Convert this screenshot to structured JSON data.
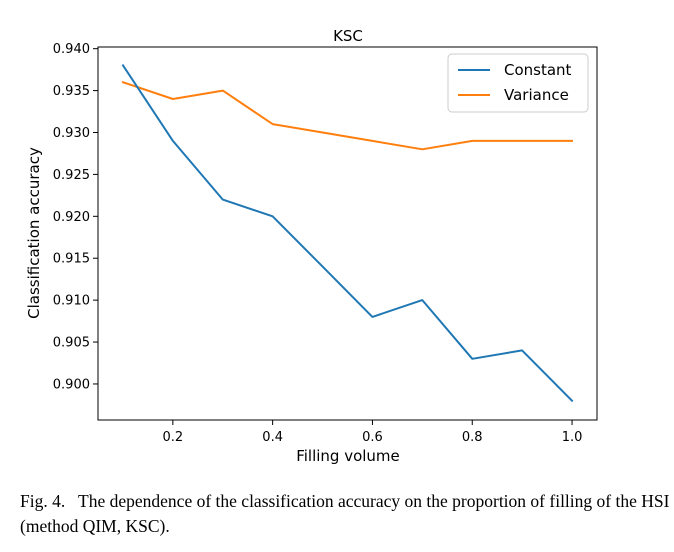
{
  "chart_data": {
    "type": "line",
    "title": "KSC",
    "xlabel": "Filling volume",
    "ylabel": "Classification accuracy",
    "xlim": [
      0.05,
      1.05
    ],
    "ylim": [
      0.8957,
      0.9402
    ],
    "x": [
      0.1,
      0.2,
      0.3,
      0.4,
      0.5,
      0.6,
      0.7,
      0.8,
      0.9,
      1.0
    ],
    "xticks": [
      0.2,
      0.4,
      0.6,
      0.8,
      1.0
    ],
    "xtick_labels": [
      "0.2",
      "0.4",
      "0.6",
      "0.8",
      "1.0"
    ],
    "yticks": [
      0.9,
      0.905,
      0.91,
      0.915,
      0.92,
      0.925,
      0.93,
      0.935,
      0.94
    ],
    "ytick_labels": [
      "0.900",
      "0.905",
      "0.910",
      "0.915",
      "0.920",
      "0.925",
      "0.930",
      "0.935",
      "0.940"
    ],
    "grid": false,
    "legend_position": "top-right",
    "series": [
      {
        "name": "Constant",
        "color": "#1f77b4",
        "values": [
          0.938,
          0.929,
          0.922,
          0.92,
          0.914,
          0.908,
          0.91,
          0.903,
          0.904,
          0.898
        ]
      },
      {
        "name": "Variance",
        "color": "#ff7f0e",
        "values": [
          0.936,
          0.934,
          0.935,
          0.931,
          0.93,
          0.929,
          0.928,
          0.929,
          0.929,
          0.929
        ]
      }
    ]
  },
  "caption": {
    "label": "Fig. 4.",
    "text": "The dependence of the classification accuracy on the proportion of filling of the HSI (method QIM, KSC)."
  }
}
